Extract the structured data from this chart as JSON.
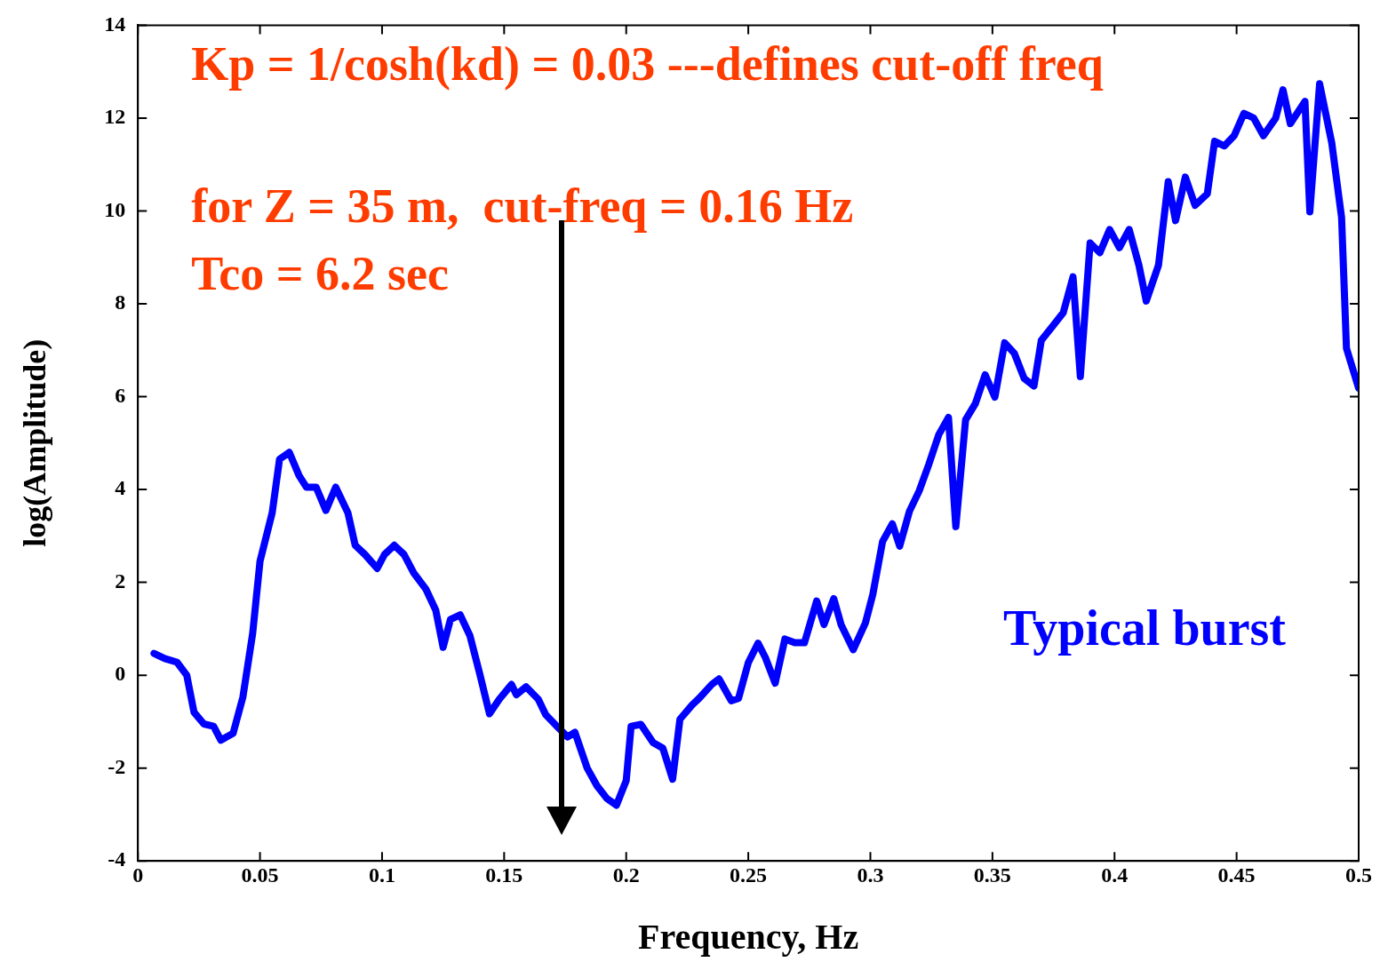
{
  "chart_data": {
    "type": "line",
    "xlabel": "Frequency, Hz",
    "ylabel": "log(Amplitude)",
    "annotations": [
      "Kp = 1/cosh(kd) = 0.03 ---defines cut-off freq",
      "for Z = 35 m,  cut-freq = 0.16 Hz",
      "Tco = 6.2 sec"
    ],
    "xlim": [
      0,
      0.5
    ],
    "xticks": [
      0,
      0.05,
      0.1,
      0.15,
      0.2,
      0.25,
      0.3,
      0.35,
      0.4,
      0.45,
      0.5
    ],
    "ylim": [
      -4,
      14
    ],
    "yticks": [
      -4,
      -2,
      0,
      2,
      4,
      6,
      8,
      10,
      12,
      14
    ],
    "grid": false,
    "legend": false,
    "marker": "none",
    "line_style": "solid",
    "series": [
      {
        "name": "Typical burst",
        "color": "#0000ff",
        "x": [
          0.0066,
          0.011,
          0.016,
          0.02,
          0.023,
          0.027,
          0.031,
          0.034,
          0.039,
          0.043,
          0.047,
          0.05,
          0.055,
          0.058,
          0.062,
          0.066,
          0.069,
          0.073,
          0.077,
          0.081,
          0.086,
          0.089,
          0.093,
          0.098,
          0.101,
          0.105,
          0.109,
          0.113,
          0.118,
          0.122,
          0.125,
          0.128,
          0.132,
          0.136,
          0.14,
          0.144,
          0.148,
          0.153,
          0.155,
          0.159,
          0.164,
          0.167,
          0.172,
          0.176,
          0.179,
          0.184,
          0.188,
          0.192,
          0.196,
          0.2,
          0.202,
          0.206,
          0.211,
          0.215,
          0.219,
          0.222,
          0.227,
          0.23,
          0.235,
          0.238,
          0.243,
          0.246,
          0.25,
          0.254,
          0.257,
          0.261,
          0.265,
          0.269,
          0.273,
          0.278,
          0.281,
          0.285,
          0.288,
          0.293,
          0.298,
          0.301,
          0.305,
          0.309,
          0.312,
          0.316,
          0.32,
          0.324,
          0.328,
          0.332,
          0.335,
          0.339,
          0.343,
          0.347,
          0.351,
          0.355,
          0.359,
          0.363,
          0.367,
          0.37,
          0.375,
          0.379,
          0.383,
          0.386,
          0.39,
          0.394,
          0.398,
          0.402,
          0.406,
          0.41,
          0.413,
          0.418,
          0.422,
          0.425,
          0.429,
          0.433,
          0.438,
          0.441,
          0.445,
          0.449,
          0.453,
          0.457,
          0.461,
          0.466,
          0.469,
          0.472,
          0.478,
          0.48,
          0.484,
          0.489,
          0.493,
          0.495,
          0.5
        ],
        "values": [
          0.47,
          0.36,
          0.28,
          0,
          -0.8,
          -1.05,
          -1.1,
          -1.4,
          -1.25,
          -0.47,
          0.9,
          2.45,
          3.5,
          4.65,
          4.8,
          4.3,
          4.05,
          4.05,
          3.55,
          4.05,
          3.5,
          2.8,
          2.6,
          2.3,
          2.6,
          2.8,
          2.6,
          2.2,
          1.85,
          1.4,
          0.6,
          1.2,
          1.3,
          0.85,
          0.03,
          -0.83,
          -0.52,
          -0.2,
          -0.42,
          -0.25,
          -0.52,
          -0.85,
          -1.12,
          -1.33,
          -1.23,
          -2.0,
          -2.38,
          -2.65,
          -2.8,
          -2.27,
          -1.1,
          -1.06,
          -1.45,
          -1.57,
          -2.24,
          -0.95,
          -0.64,
          -0.49,
          -0.2,
          -0.08,
          -0.55,
          -0.5,
          0.27,
          0.69,
          0.38,
          -0.17,
          0.78,
          0.7,
          0.7,
          1.6,
          1.09,
          1.65,
          1.09,
          0.55,
          1.13,
          1.74,
          2.88,
          3.26,
          2.78,
          3.53,
          3.97,
          4.55,
          5.18,
          5.55,
          3.2,
          5.5,
          5.85,
          6.47,
          5.99,
          7.16,
          6.93,
          6.39,
          6.23,
          7.21,
          7.54,
          7.81,
          8.58,
          6.43,
          9.31,
          9.1,
          9.6,
          9.21,
          9.6,
          8.83,
          8.06,
          8.83,
          10.63,
          9.79,
          10.73,
          10.12,
          10.37,
          11.5,
          11.4,
          11.62,
          12.1,
          12.0,
          11.62,
          12.0,
          12.61,
          11.88,
          12.36,
          9.98,
          12.74,
          11.46,
          9.86,
          7.04,
          6.18
        ]
      }
    ]
  }
}
